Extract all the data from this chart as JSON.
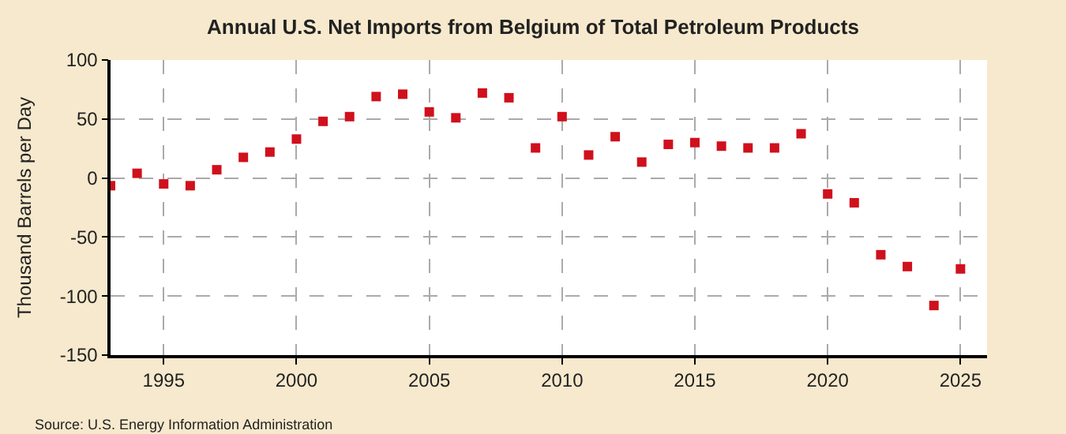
{
  "chart_data": {
    "type": "scatter",
    "title": "Annual U.S. Net Imports from Belgium of Total Petroleum Products",
    "ylabel": "Thousand Barrels per Day",
    "x": [
      1993,
      1994,
      1995,
      1996,
      1997,
      1998,
      1999,
      2000,
      2001,
      2002,
      2003,
      2004,
      2005,
      2006,
      2007,
      2008,
      2009,
      2010,
      2011,
      2012,
      2013,
      2014,
      2015,
      2016,
      2017,
      2018,
      2019,
      2020,
      2021,
      2022,
      2023,
      2024,
      2025
    ],
    "series": [
      {
        "color": "#d0101c",
        "values": [
          -6.5,
          4,
          -5,
          -6.5,
          7,
          17.5,
          22,
          33,
          48,
          52,
          69,
          71,
          56,
          51,
          72,
          68,
          25.5,
          52,
          19.5,
          35,
          13.5,
          28.5,
          30,
          27,
          25.5,
          25.5,
          37.5,
          -13.5,
          -21,
          -65,
          -75,
          -108,
          -77
        ]
      }
    ],
    "xlim": [
      1993,
      2026
    ],
    "xticks": [
      1995,
      2000,
      2005,
      2010,
      2015,
      2020,
      2025
    ],
    "ylim": [
      -150,
      100
    ],
    "yticks": [
      -150,
      -100,
      -50,
      0,
      50,
      100
    ],
    "grid": true,
    "marker": "square",
    "annotations": [
      "Source: U.S. Energy Information Administration"
    ]
  }
}
